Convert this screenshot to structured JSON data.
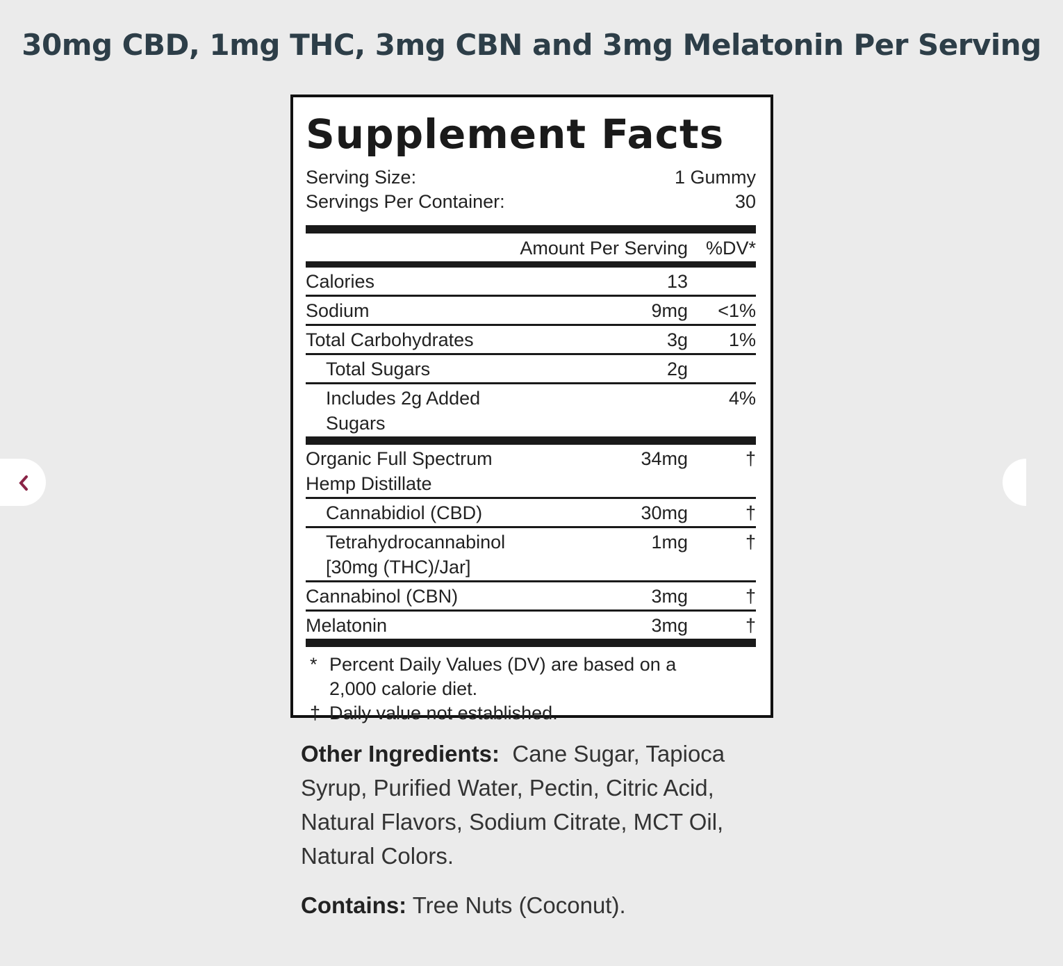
{
  "header": {
    "title": "30mg CBD, 1mg THC, 3mg CBN and 3mg Melatonin Per Serving"
  },
  "panel": {
    "title": "Supplement Facts",
    "serving": [
      {
        "label": "Serving Size:",
        "value": "1 Gummy"
      },
      {
        "label": "Servings Per Container:",
        "value": "30"
      }
    ],
    "column_headers": {
      "amount": "Amount Per Serving",
      "dv": "%DV*"
    },
    "groups": [
      [
        {
          "name": "Calories",
          "amount": "13"
        },
        {
          "name": "Sodium",
          "amount": "9mg",
          "dv": "<1%"
        },
        {
          "name": "Total Carbohydrates",
          "amount": "3g",
          "dv": "1%"
        },
        {
          "name": "Total Sugars",
          "amount": "2g",
          "indent": true
        },
        {
          "name": "Includes 2g Added Sugars",
          "dv": "4%",
          "indent": true
        }
      ],
      [
        {
          "name": "Organic Full Spectrum Hemp Distillate",
          "amount": "34mg",
          "dv": "†"
        },
        {
          "name": "Cannabidiol (CBD)",
          "amount": "30mg",
          "dv": "†",
          "indent": true
        },
        {
          "name": "Tetrahydrocannabinol [30mg (THC)/Jar]",
          "amount": "1mg",
          "dv": "†",
          "indent": true
        },
        {
          "name": "Cannabinol (CBN)",
          "amount": "3mg",
          "dv": "†"
        },
        {
          "name": "Melatonin",
          "amount": "3mg",
          "dv": "†"
        }
      ]
    ],
    "footnotes": [
      {
        "mark": "*",
        "text": "Percent Daily Values (DV) are based on a 2,000 calorie diet."
      },
      {
        "mark": "†",
        "text": "Daily value not established."
      }
    ]
  },
  "other_ingredients": {
    "label": "Other Ingredients:",
    "text": "Cane Sugar, Tapioca Syrup, Purified Water, Pectin, Citric Acid, Natural Flavors, Sodium Citrate, MCT Oil, Natural Colors."
  },
  "contains": {
    "label": "Contains:",
    "text": "Tree Nuts (Coconut)."
  }
}
